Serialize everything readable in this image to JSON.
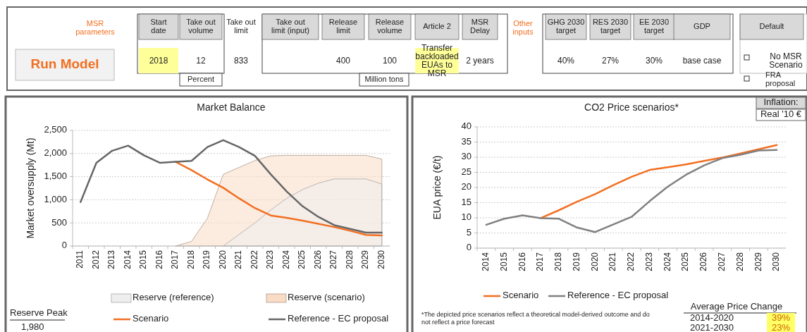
{
  "chart_data": [
    {
      "type": "other",
      "annotations": [
        "MSR parameters",
        "Run Model",
        "Start date",
        "2018",
        "Take out volume",
        "12",
        "Percent",
        "Take out limit",
        "833",
        "Take out limit (input)",
        "Release limit",
        "400",
        "Release volume",
        "100",
        "Million tons",
        "Article 2",
        "Transfer backloaded EUAs to MSR",
        "MSR Delay",
        "2 years",
        "Other inputs",
        "GHG 2030 target",
        "40%",
        "RES 2030 target",
        "27%",
        "EE 2030 target",
        "30%",
        "GDP",
        "base case",
        "Default",
        "No MSR Scenario",
        "FRA proposal"
      ]
    },
    {
      "type": "line",
      "title": "Market Balance",
      "ylabel": "Market oversupply (Mt)",
      "categories": [
        "2011",
        "2012",
        "2013",
        "2014",
        "2015",
        "2016",
        "2017",
        "2018",
        "2019",
        "2020",
        "2021",
        "2022",
        "2023",
        "2024",
        "2025",
        "2026",
        "2027",
        "2028",
        "2029",
        "2030"
      ],
      "ylim": [
        0,
        2500
      ],
      "yticks": [
        0,
        500,
        {
          "value": 1000,
          "label": "1,000"
        },
        {
          "value": 1500,
          "label": "1,500"
        },
        {
          "value": 2000,
          "label": "2,000"
        },
        {
          "value": 2500,
          "label": "2,500"
        }
      ],
      "grid": "y",
      "legend": "bottom",
      "annotations": [
        "Reserve Peak",
        "1,980"
      ],
      "series": [
        {
          "name": "Reserve (reference)",
          "type": "area",
          "color": "#eeeeee",
          "values": [
            null,
            null,
            null,
            null,
            null,
            null,
            null,
            null,
            null,
            0,
            250,
            500,
            780,
            1030,
            1220,
            1360,
            1450,
            1450,
            1450,
            1340
          ]
        },
        {
          "name": "Reserve (scenario)",
          "type": "area",
          "color": "#f9dcc6",
          "values": [
            null,
            null,
            null,
            null,
            null,
            null,
            0,
            100,
            600,
            1550,
            1700,
            1850,
            1950,
            1960,
            1960,
            1960,
            1960,
            1960,
            1960,
            1880
          ]
        },
        {
          "name": "Scenario",
          "type": "line",
          "color": "#f26f21",
          "values": [
            null,
            null,
            null,
            null,
            null,
            null,
            1820,
            1640,
            1440,
            1260,
            1030,
            820,
            660,
            610,
            550,
            480,
            410,
            330,
            240,
            230
          ]
        },
        {
          "name": "Reference - EC proposal",
          "type": "line",
          "color": "#666666",
          "values": [
            950,
            1800,
            2060,
            2170,
            1960,
            1800,
            1820,
            1840,
            2140,
            2290,
            2140,
            1950,
            1550,
            1180,
            860,
            630,
            450,
            370,
            290,
            290
          ]
        }
      ]
    },
    {
      "type": "line",
      "title": "CO2 Price scenarios*",
      "ylabel": "EUA price (€/t)",
      "categories": [
        "2014",
        "2015",
        "2016",
        "2017",
        "2018",
        "2019",
        "2020",
        "2021",
        "2022",
        "2023",
        "2024",
        "2025",
        "2026",
        "2027",
        "2028",
        "2029",
        "2030"
      ],
      "ylim": [
        0,
        40
      ],
      "yticks": [
        0,
        5,
        10,
        15,
        20,
        25,
        30,
        35,
        40
      ],
      "grid": "y",
      "legend": "bottom",
      "annotations": [
        "*The depicted price scenarios reflect a theoretical model-derived outcome and do not reflect a price forecast",
        "Average Price Change",
        "2014-2020",
        "39%",
        "2021-2030",
        "23%",
        "Inflation:",
        "Real '10 €"
      ],
      "series": [
        {
          "name": "Scenario",
          "color": "#f26f21",
          "values": [
            null,
            null,
            null,
            9.9,
            12.5,
            15.3,
            17.8,
            20.8,
            23.5,
            25.8,
            26.7,
            27.6,
            28.8,
            29.9,
            31.2,
            32.6,
            34.0
          ]
        },
        {
          "name": "Reference - EC proposal",
          "color": "#808080",
          "values": [
            7.7,
            9.7,
            10.8,
            9.9,
            9.7,
            6.8,
            5.3,
            7.8,
            10.3,
            15.5,
            20.3,
            24.2,
            27.3,
            29.7,
            30.8,
            32.2,
            32.4
          ]
        }
      ]
    }
  ]
}
